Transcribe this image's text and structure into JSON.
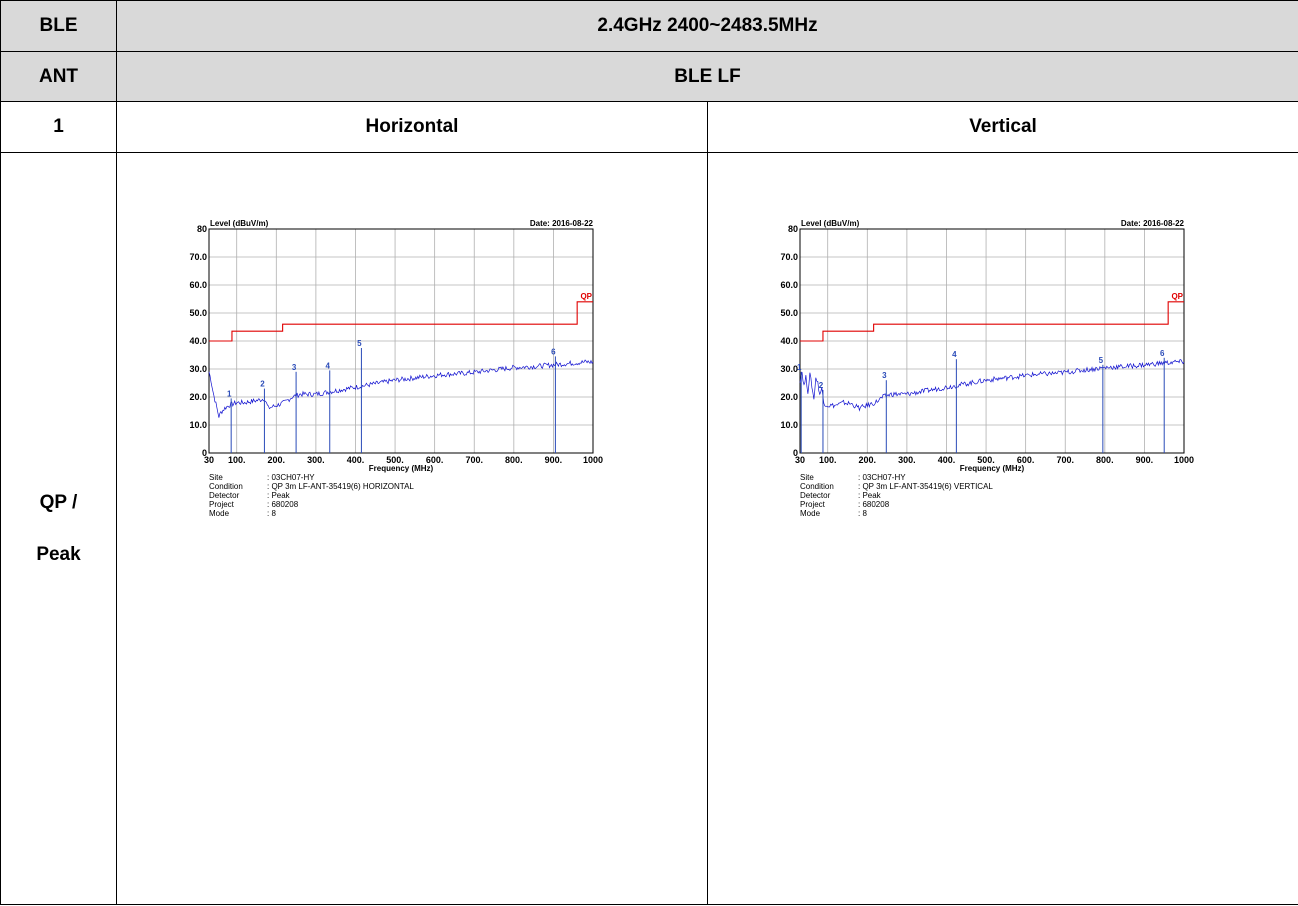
{
  "header": {
    "band_label": "BLE",
    "band_value": "2.4GHz 2400~2483.5MHz",
    "ant_label": "ANT",
    "ant_value": "BLE LF",
    "index_label": "1",
    "col_horizontal": "Horizontal",
    "col_vertical": "Vertical",
    "mode_label_1": "QP /",
    "mode_label_2": "Peak"
  },
  "colors": {
    "header_bg": "#d9d9d9",
    "trace": "#1010d0",
    "limit": "#e00000",
    "marker": "#2a4bb8",
    "grid": "#b0b0b0"
  },
  "chart_data": [
    {
      "type": "line",
      "ylabel": "Level (dBuV/m)",
      "xlabel": "Frequency (MHz)",
      "date": "Date: 2016-08-22",
      "ylim": [
        0,
        80
      ],
      "xlim": [
        30,
        1000
      ],
      "yticks": [
        "0",
        "10.0",
        "20.0",
        "30.0",
        "40.0",
        "50.0",
        "60.0",
        "70.0",
        "80"
      ],
      "xticks": [
        "30",
        "100.",
        "200.",
        "300.",
        "400.",
        "500.",
        "600.",
        "700.",
        "800.",
        "900.",
        "1000"
      ],
      "xtick_values": [
        30,
        100,
        200,
        300,
        400,
        500,
        600,
        700,
        800,
        900,
        1000
      ],
      "grid": true,
      "limit_label": "QP",
      "limit_line": {
        "x": [
          30,
          88,
          88,
          216,
          216,
          960,
          960,
          1000
        ],
        "y": [
          40,
          40,
          43.5,
          43.5,
          46,
          46,
          54,
          54
        ]
      },
      "trace": {
        "x": [
          30,
          35,
          40,
          45,
          50,
          55,
          60,
          70,
          80,
          90,
          100,
          120,
          140,
          160,
          170,
          180,
          200,
          220,
          240,
          260,
          300,
          340,
          380,
          420,
          460,
          500,
          560,
          620,
          680,
          740,
          800,
          860,
          900,
          940,
          980,
          1000
        ],
        "y": [
          29,
          26,
          22,
          19,
          16,
          13,
          14.5,
          16,
          17,
          17.5,
          18,
          18,
          18.5,
          19,
          19.5,
          16,
          17,
          18,
          20,
          21,
          21,
          22,
          23,
          24,
          25,
          26,
          27,
          28,
          28.5,
          29.5,
          30.5,
          31,
          31.5,
          32,
          32.5,
          32.5
        ]
      },
      "markers": [
        {
          "label": "1",
          "freq": 86,
          "level": 19.5
        },
        {
          "label": "2",
          "freq": 170,
          "level": 23
        },
        {
          "label": "3",
          "freq": 250,
          "level": 29
        },
        {
          "label": "4",
          "freq": 335,
          "level": 29.5
        },
        {
          "label": "5",
          "freq": 415,
          "level": 37.5
        },
        {
          "label": "6",
          "freq": 905,
          "level": 34.5
        }
      ],
      "info": {
        "site_key": "Site",
        "site": ": 03CH07-HY",
        "cond_key": "Condition",
        "cond": ": QP 3m LF-ANT-35419(6) HORIZONTAL",
        "det_key": "Detector",
        "det": ": Peak",
        "proj_key": "Project",
        "proj": ": 680208",
        "mode_key": "Mode",
        "mode": ": 8"
      }
    },
    {
      "type": "line",
      "ylabel": "Level (dBuV/m)",
      "xlabel": "Frequency (MHz)",
      "date": "Date: 2016-08-22",
      "ylim": [
        0,
        80
      ],
      "xlim": [
        30,
        1000
      ],
      "yticks": [
        "0",
        "10.0",
        "20.0",
        "30.0",
        "40.0",
        "50.0",
        "60.0",
        "70.0",
        "80"
      ],
      "xticks": [
        "30",
        "100.",
        "200.",
        "300.",
        "400.",
        "500.",
        "600.",
        "700.",
        "800.",
        "900.",
        "1000"
      ],
      "xtick_values": [
        30,
        100,
        200,
        300,
        400,
        500,
        600,
        700,
        800,
        900,
        1000
      ],
      "grid": true,
      "limit_label": "QP",
      "limit_line": {
        "x": [
          30,
          88,
          88,
          216,
          216,
          960,
          960,
          1000
        ],
        "y": [
          40,
          40,
          43.5,
          43.5,
          46,
          46,
          54,
          54
        ]
      },
      "trace": {
        "x": [
          30,
          35,
          40,
          45,
          50,
          55,
          60,
          65,
          70,
          75,
          80,
          85,
          90,
          100,
          120,
          140,
          160,
          180,
          200,
          220,
          240,
          260,
          300,
          340,
          380,
          420,
          460,
          500,
          560,
          620,
          680,
          740,
          800,
          860,
          900,
          940,
          980,
          1000
        ],
        "y": [
          26,
          29,
          24,
          27,
          22,
          28,
          24,
          19,
          27,
          25,
          21,
          23,
          18,
          17,
          17,
          18,
          17.5,
          16,
          17,
          18,
          20,
          21,
          21,
          22,
          23,
          24,
          25,
          26,
          27,
          28,
          28.5,
          29.5,
          30.5,
          31,
          31.5,
          32,
          32.5,
          32.5
        ]
      },
      "markers": [
        {
          "label": "1",
          "freq": 33,
          "level": 29
        },
        {
          "label": "2",
          "freq": 88,
          "level": 22.5
        },
        {
          "label": "3",
          "freq": 248,
          "level": 26
        },
        {
          "label": "4",
          "freq": 425,
          "level": 33.5
        },
        {
          "label": "5",
          "freq": 795,
          "level": 31.5
        },
        {
          "label": "6",
          "freq": 950,
          "level": 34
        }
      ],
      "info": {
        "site_key": "Site",
        "site": ": 03CH07-HY",
        "cond_key": "Condition",
        "cond": ": QP 3m LF-ANT-35419(6) VERTICAL",
        "det_key": "Detector",
        "det": ": Peak",
        "proj_key": "Project",
        "proj": ": 680208",
        "mode_key": "Mode",
        "mode": ": 8"
      }
    }
  ]
}
